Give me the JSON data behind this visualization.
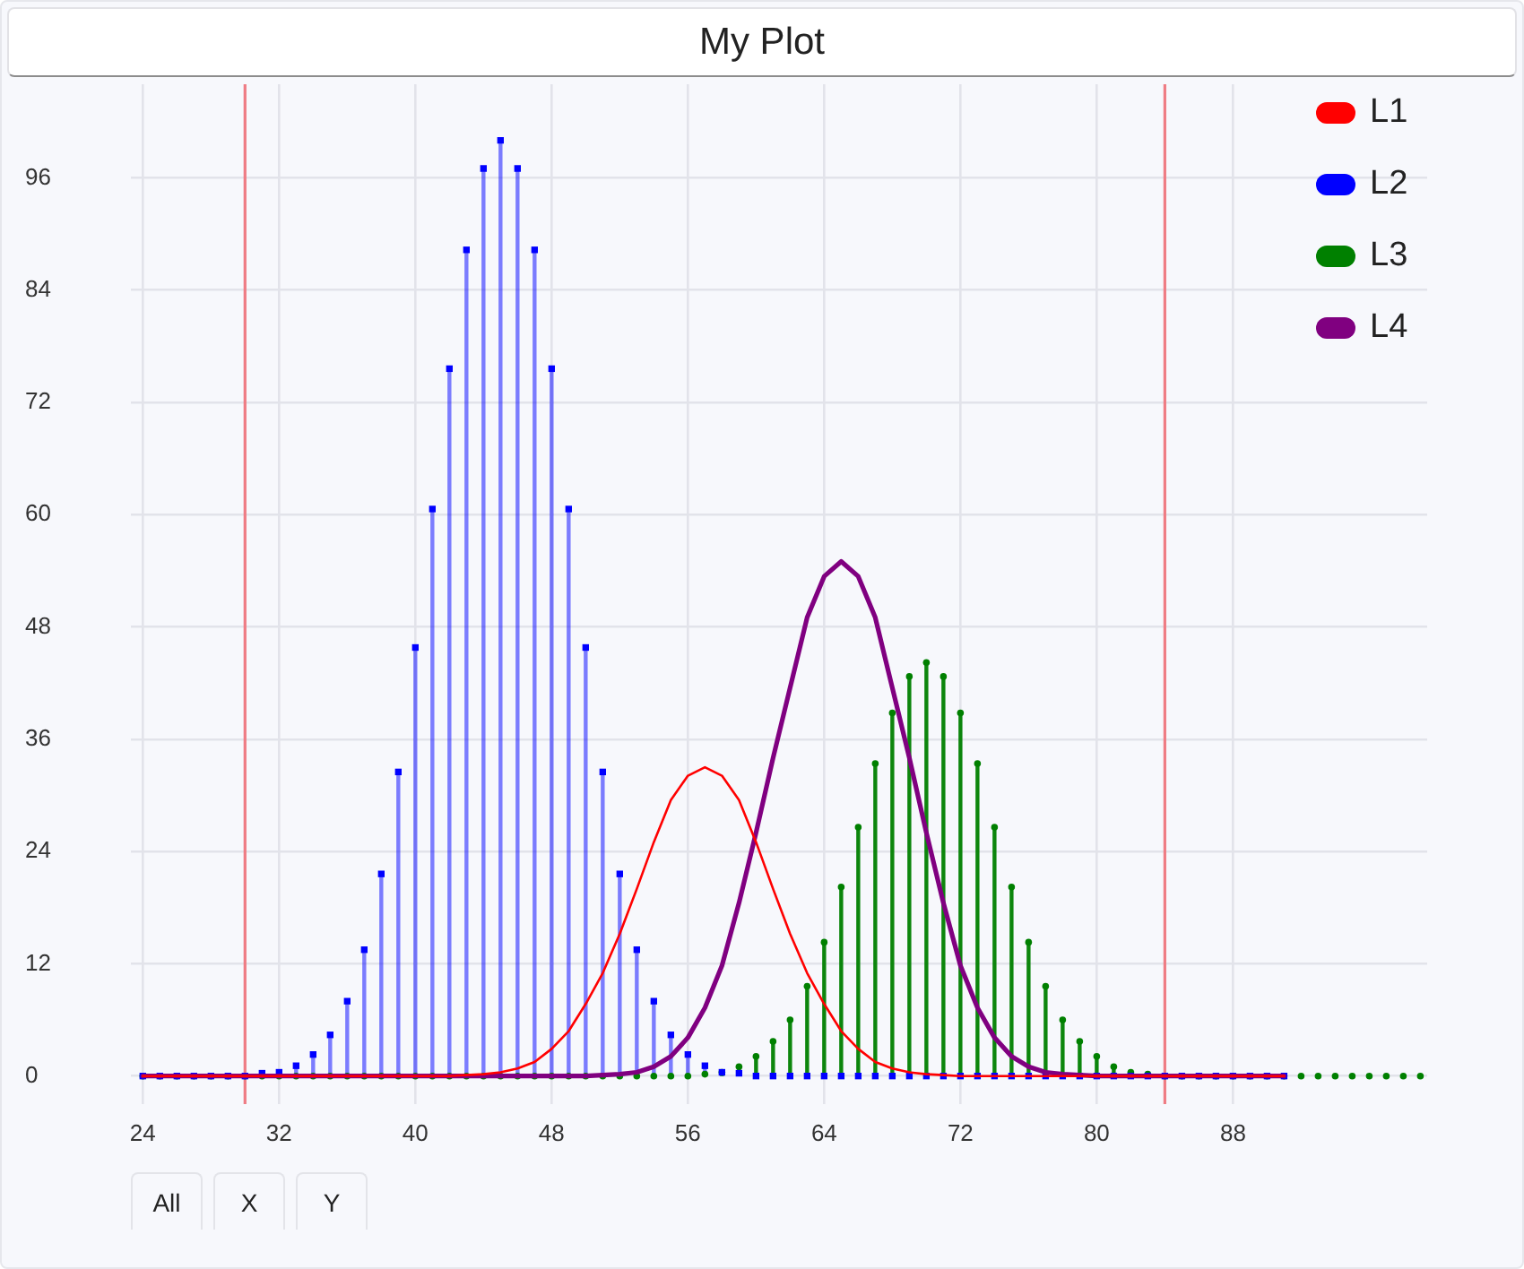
{
  "chart_data": {
    "type": "line",
    "title": "My Plot",
    "annotations": [
      "All",
      "X",
      "Y"
    ],
    "x": [
      24,
      25,
      26,
      27,
      28,
      29,
      30,
      31,
      32,
      33,
      34,
      35,
      36,
      37,
      38,
      39,
      40,
      41,
      42,
      43,
      44,
      45,
      46,
      47,
      48,
      49,
      50,
      51,
      52,
      53,
      54,
      55,
      56,
      57,
      58,
      59,
      60,
      61,
      62,
      63,
      64,
      65,
      66,
      67,
      68,
      69,
      70,
      71,
      72,
      73,
      74,
      75,
      76,
      77,
      78,
      79,
      80,
      81,
      82,
      83,
      84,
      85,
      86,
      87,
      88,
      89,
      90,
      91
    ],
    "xlim": [
      23.3,
      99.4
    ],
    "xticks": [
      24,
      32,
      40,
      48,
      56,
      64,
      72,
      80,
      88
    ],
    "ylim": [
      -3,
      106
    ],
    "yticks": [
      0,
      12,
      24,
      36,
      48,
      60,
      72,
      84,
      96
    ],
    "grid": true,
    "legend": "top right",
    "ref_lines": [
      {
        "axis": "x",
        "value": 30,
        "color": "#ef7c84"
      },
      {
        "axis": "x",
        "value": 84,
        "color": "#ef7c84"
      }
    ],
    "series": [
      {
        "name": "L1",
        "type": "line",
        "color": "#ff0000",
        "marker": "none",
        "values": [
          0,
          0,
          0,
          0,
          0,
          0,
          0,
          0,
          0,
          0,
          0,
          0,
          0,
          0,
          0,
          0,
          0,
          0,
          0,
          0.1,
          0.2,
          0.4,
          0.8,
          1.5,
          2.9,
          4.8,
          7.7,
          11,
          15.2,
          20,
          25,
          29.5,
          32.1,
          33,
          32.1,
          29.5,
          25,
          20,
          15.2,
          11,
          7.7,
          4.8,
          2.9,
          1.5,
          0.8,
          0.4,
          0.2,
          0.1,
          0,
          0,
          0,
          0,
          0,
          0,
          0,
          0,
          0,
          0,
          0,
          0,
          0,
          0,
          0,
          0,
          0,
          0,
          0,
          0
        ]
      },
      {
        "name": "L2",
        "type": "lollipop",
        "color": "#0000ff",
        "marker": "square",
        "values": [
          0,
          0,
          0,
          0,
          0,
          0,
          0,
          0.3,
          0.4,
          1.1,
          2.3,
          4.4,
          8,
          13.5,
          21.6,
          32.5,
          45.8,
          60.6,
          75.6,
          88.3,
          97,
          100,
          97,
          88.3,
          75.6,
          60.6,
          45.8,
          32.5,
          21.6,
          13.5,
          8,
          4.4,
          2.3,
          1.1,
          0.4,
          0.3,
          0,
          0,
          0,
          0,
          0,
          0,
          0,
          0,
          0,
          0,
          0,
          0,
          0,
          0,
          0,
          0,
          0,
          0,
          0,
          0,
          0,
          0,
          0,
          0,
          0,
          0,
          0,
          0,
          0,
          0,
          0,
          0
        ]
      },
      {
        "name": "L3",
        "type": "lollipop",
        "color": "#008000",
        "marker": "circle",
        "x": [
          24,
          25,
          26,
          27,
          28,
          29,
          30,
          31,
          32,
          33,
          34,
          35,
          36,
          37,
          38,
          39,
          40,
          41,
          42,
          43,
          44,
          45,
          46,
          47,
          48,
          49,
          50,
          51,
          52,
          53,
          54,
          55,
          56,
          57,
          58,
          59,
          60,
          61,
          62,
          63,
          64,
          65,
          66,
          67,
          68,
          69,
          70,
          71,
          72,
          73,
          74,
          75,
          76,
          77,
          78,
          79,
          80,
          81,
          82,
          83,
          84,
          85,
          86,
          87,
          88,
          89,
          90,
          91,
          92,
          93,
          94,
          95,
          96,
          97,
          98,
          99
        ],
        "values": [
          0,
          0,
          0,
          0,
          0,
          0,
          0,
          0,
          0,
          0,
          0,
          0,
          0,
          0,
          0,
          0,
          0,
          0,
          0,
          0,
          0,
          0,
          0,
          0,
          0,
          0,
          0,
          0,
          0,
          0,
          0,
          0,
          0,
          0.2,
          0.4,
          1,
          2.1,
          3.7,
          6,
          9.6,
          14.3,
          20.2,
          26.6,
          33.4,
          38.8,
          42.7,
          44.2,
          42.7,
          38.8,
          33.4,
          26.6,
          20.2,
          14.3,
          9.6,
          6,
          3.7,
          2.1,
          1,
          0.4,
          0.2,
          0,
          0,
          0,
          0,
          0,
          0,
          0,
          0,
          0,
          0,
          0,
          0,
          0,
          0,
          0,
          0
        ]
      },
      {
        "name": "L4",
        "color": "#800080",
        "marker": "none",
        "values": [
          0,
          0,
          0,
          0,
          0,
          0,
          0,
          0,
          0,
          0,
          0,
          0,
          0,
          0,
          0,
          0,
          0,
          0,
          0,
          0,
          0,
          0,
          0,
          0,
          0,
          0,
          0,
          0.1,
          0.2,
          0.4,
          1,
          2.1,
          4.1,
          7.3,
          11.8,
          18.5,
          26,
          34,
          41.5,
          49,
          53.4,
          55,
          53.4,
          49,
          41.5,
          34,
          26,
          18.5,
          11.8,
          7.3,
          4.1,
          2.1,
          1,
          0.4,
          0.2,
          0.1,
          0,
          0,
          0,
          0,
          0,
          0,
          0,
          0,
          0,
          0,
          0,
          0
        ]
      }
    ]
  }
}
